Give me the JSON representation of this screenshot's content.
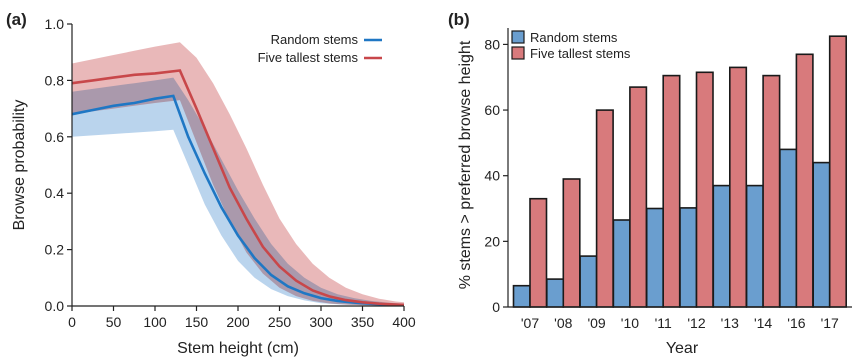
{
  "colors": {
    "random": "#1f77c4",
    "tallest": "#c8474a",
    "random_band": "#a9c9e8",
    "tallest_band": "#e4a6a8",
    "random_bar": "#6a9ecf",
    "tallest_bar": "#d87a7c"
  },
  "chart_data": [
    {
      "panel": "(a)",
      "type": "line",
      "xlabel": "Stem height (cm)",
      "ylabel": "Browse probability",
      "xlim": [
        0,
        400
      ],
      "ylim": [
        0,
        1.0
      ],
      "xticks": [
        "0",
        "50",
        "100",
        "150",
        "200",
        "250",
        "300",
        "350",
        "400"
      ],
      "yticks": [
        "0.0",
        "0.2",
        "0.4",
        "0.6",
        "0.8",
        "1.0"
      ],
      "grid": false,
      "legend_position": "top-right",
      "series": [
        {
          "name": "Random stems",
          "x": [
            0,
            25,
            50,
            75,
            100,
            122,
            140,
            160,
            180,
            200,
            220,
            240,
            260,
            280,
            300,
            320,
            340,
            360,
            380,
            400
          ],
          "y": [
            0.68,
            0.695,
            0.71,
            0.72,
            0.735,
            0.745,
            0.6,
            0.47,
            0.35,
            0.25,
            0.17,
            0.11,
            0.07,
            0.045,
            0.028,
            0.018,
            0.012,
            0.008,
            0.005,
            0.003
          ],
          "lower": [
            0.6,
            0.605,
            0.61,
            0.615,
            0.62,
            0.625,
            0.5,
            0.36,
            0.25,
            0.16,
            0.1,
            0.06,
            0.035,
            0.02,
            0.01,
            0.006,
            0.004,
            0.002,
            0.001,
            0.0
          ],
          "upper": [
            0.76,
            0.77,
            0.78,
            0.79,
            0.8,
            0.81,
            0.73,
            0.63,
            0.52,
            0.41,
            0.31,
            0.22,
            0.15,
            0.1,
            0.065,
            0.042,
            0.028,
            0.018,
            0.012,
            0.008
          ]
        },
        {
          "name": "Five tallest stems",
          "x": [
            0,
            25,
            50,
            75,
            100,
            130,
            150,
            170,
            190,
            210,
            230,
            250,
            270,
            290,
            310,
            330,
            350,
            370,
            390,
            400
          ],
          "y": [
            0.79,
            0.8,
            0.81,
            0.82,
            0.825,
            0.835,
            0.7,
            0.56,
            0.42,
            0.31,
            0.21,
            0.14,
            0.09,
            0.055,
            0.034,
            0.021,
            0.013,
            0.008,
            0.005,
            0.004
          ],
          "lower": [
            0.68,
            0.69,
            0.7,
            0.71,
            0.72,
            0.73,
            0.58,
            0.43,
            0.3,
            0.19,
            0.115,
            0.065,
            0.035,
            0.018,
            0.009,
            0.005,
            0.003,
            0.002,
            0.001,
            0.0
          ],
          "upper": [
            0.86,
            0.875,
            0.89,
            0.905,
            0.92,
            0.935,
            0.88,
            0.79,
            0.68,
            0.56,
            0.43,
            0.31,
            0.22,
            0.15,
            0.1,
            0.065,
            0.042,
            0.026,
            0.016,
            0.013
          ]
        }
      ]
    },
    {
      "panel": "(b)",
      "type": "bar",
      "xlabel": "Year",
      "ylabel": "% stems > preferred browse height",
      "ylim": [
        0,
        85
      ],
      "yticks": [
        "0",
        "20",
        "40",
        "60",
        "80"
      ],
      "grid": false,
      "legend_position": "top-left",
      "categories": [
        "'07",
        "'08",
        "'09",
        "'10",
        "'11",
        "'12",
        "'13",
        "'14",
        "'16",
        "'17"
      ],
      "series": [
        {
          "name": "Random stems",
          "values": [
            6.5,
            8.5,
            15.5,
            26.5,
            30,
            30.2,
            37,
            37,
            48,
            44
          ]
        },
        {
          "name": "Five tallest stems",
          "values": [
            33,
            39,
            60,
            67,
            70.5,
            71.5,
            73,
            70.5,
            77,
            82.5
          ]
        }
      ]
    }
  ]
}
